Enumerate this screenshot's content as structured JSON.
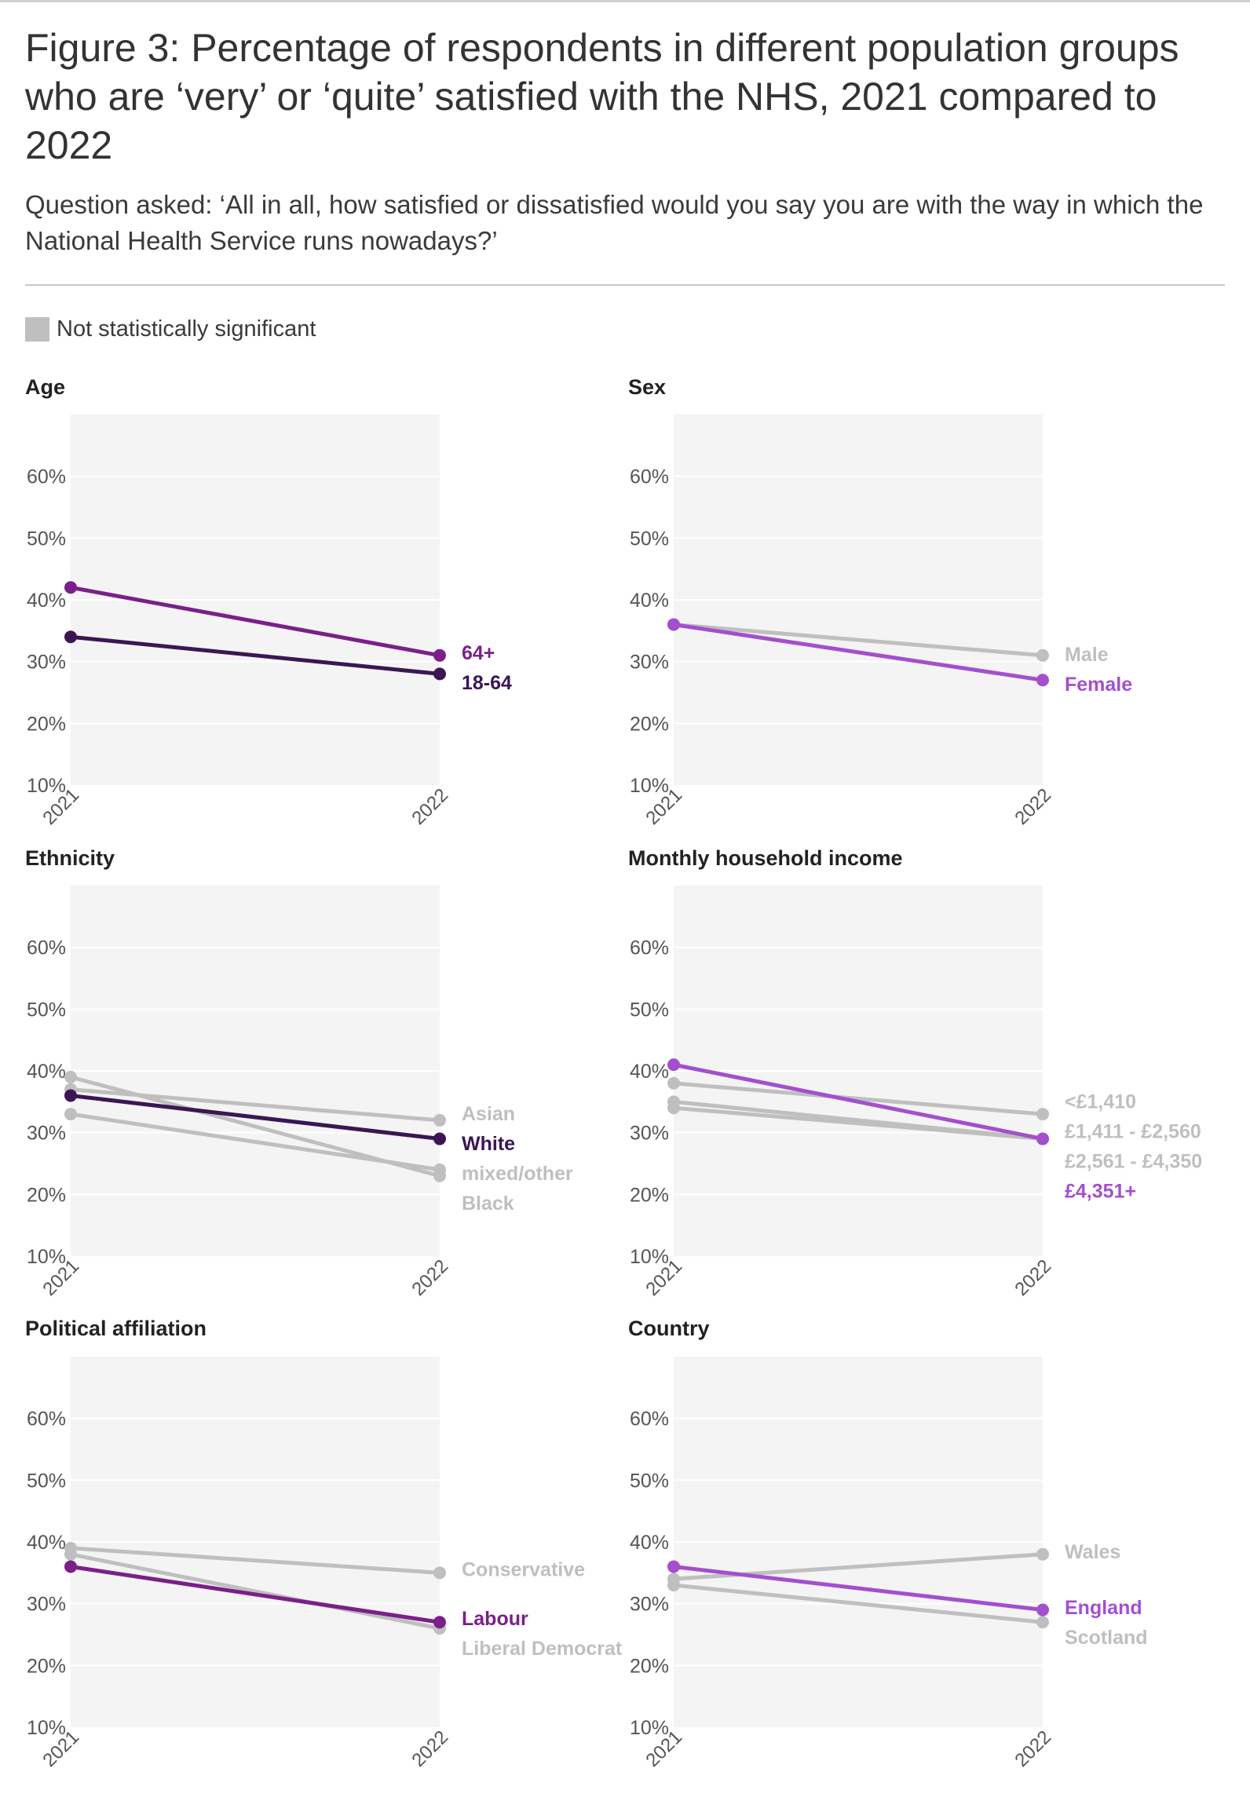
{
  "title": "Figure 3: Percentage of respondents in different population groups who are ‘very’ or ‘quite’ satisfied with the NHS, 2021 compared to 2022",
  "subtitle": "Question asked: ‘All in all, how satisfied or dissatisfied would you say you are with the way in which the National Health Service runs nowadays?’",
  "legend": {
    "label": "Not statistically significant",
    "color": "#bfbfbf"
  },
  "chart_data": [
    {
      "type": "line",
      "title": "Age",
      "x": [
        "2021",
        "2022"
      ],
      "ylim": [
        10,
        70
      ],
      "yticks": [
        "10%",
        "20%",
        "30%",
        "40%",
        "50%",
        "60%"
      ],
      "series": [
        {
          "name": "64+",
          "values": [
            42,
            31
          ],
          "color": "#7b1f8a",
          "significant": true
        },
        {
          "name": "18-64",
          "values": [
            34,
            28
          ],
          "color": "#3b1654",
          "significant": true
        }
      ]
    },
    {
      "type": "line",
      "title": "Sex",
      "x": [
        "2021",
        "2022"
      ],
      "ylim": [
        10,
        70
      ],
      "yticks": [
        "10%",
        "20%",
        "30%",
        "40%",
        "50%",
        "60%"
      ],
      "series": [
        {
          "name": "Male",
          "values": [
            36,
            31
          ],
          "color": "#bfbfbf",
          "significant": false
        },
        {
          "name": "Female",
          "values": [
            36,
            27
          ],
          "color": "#a34fcf",
          "significant": true
        }
      ]
    },
    {
      "type": "line",
      "title": "Ethnicity",
      "x": [
        "2021",
        "2022"
      ],
      "ylim": [
        10,
        70
      ],
      "yticks": [
        "10%",
        "20%",
        "30%",
        "40%",
        "50%",
        "60%"
      ],
      "series": [
        {
          "name": "Asian",
          "values": [
            37,
            32
          ],
          "color": "#bfbfbf",
          "significant": false
        },
        {
          "name": "mixed/other",
          "values": [
            33,
            24
          ],
          "color": "#bfbfbf",
          "significant": false
        },
        {
          "name": "Black",
          "values": [
            39,
            23
          ],
          "color": "#bfbfbf",
          "significant": false
        },
        {
          "name": "White",
          "values": [
            36,
            29
          ],
          "color": "#3b1654",
          "significant": true
        }
      ]
    },
    {
      "type": "line",
      "title": "Monthly household income",
      "x": [
        "2021",
        "2022"
      ],
      "ylim": [
        10,
        70
      ],
      "yticks": [
        "10%",
        "20%",
        "30%",
        "40%",
        "50%",
        "60%"
      ],
      "series": [
        {
          "name": "<£1,410",
          "values": [
            38,
            33
          ],
          "color": "#bfbfbf",
          "significant": false
        },
        {
          "name": "£1,411 - £2,560",
          "values": [
            35,
            29
          ],
          "color": "#bfbfbf",
          "significant": false
        },
        {
          "name": "£2,561 - £4,350",
          "values": [
            34,
            29
          ],
          "color": "#bfbfbf",
          "significant": false
        },
        {
          "name": "£4,351+",
          "values": [
            41,
            29
          ],
          "color": "#a34fcf",
          "significant": true
        }
      ]
    },
    {
      "type": "line",
      "title": "Political affiliation",
      "x": [
        "2021",
        "2022"
      ],
      "ylim": [
        10,
        70
      ],
      "yticks": [
        "10%",
        "20%",
        "30%",
        "40%",
        "50%",
        "60%"
      ],
      "series": [
        {
          "name": "Conservative",
          "values": [
            39,
            35
          ],
          "color": "#bfbfbf",
          "significant": false
        },
        {
          "name": "Liberal Democrat",
          "values": [
            38,
            26
          ],
          "color": "#bfbfbf",
          "significant": false
        },
        {
          "name": "Labour",
          "values": [
            36,
            27
          ],
          "color": "#7b1f8a",
          "significant": true
        }
      ]
    },
    {
      "type": "line",
      "title": "Country",
      "x": [
        "2021",
        "2022"
      ],
      "ylim": [
        10,
        70
      ],
      "yticks": [
        "10%",
        "20%",
        "30%",
        "40%",
        "50%",
        "60%"
      ],
      "series": [
        {
          "name": "Wales",
          "values": [
            34,
            38
          ],
          "color": "#bfbfbf",
          "significant": false
        },
        {
          "name": "Scotland",
          "values": [
            33,
            27
          ],
          "color": "#bfbfbf",
          "significant": false
        },
        {
          "name": "England",
          "values": [
            36,
            29
          ],
          "color": "#a34fcf",
          "significant": true
        }
      ]
    }
  ]
}
